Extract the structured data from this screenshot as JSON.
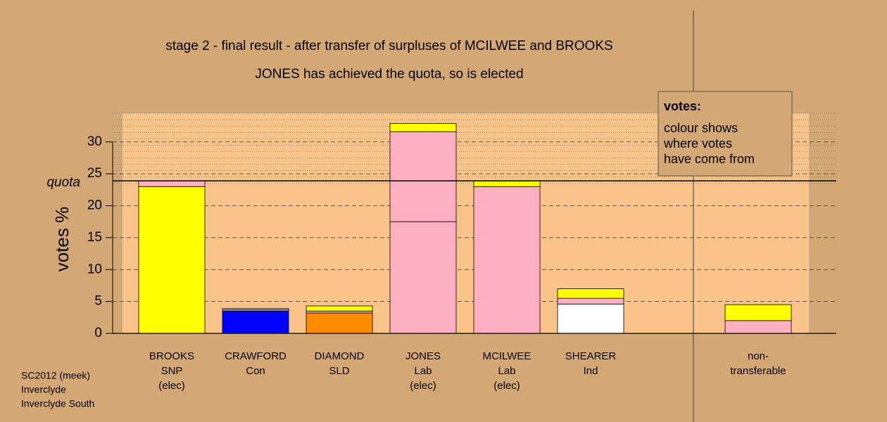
{
  "chart_data": {
    "type": "stacked-bar",
    "title": "stage 2 - final result - after transfer of surpluses of MCILWEE and BROOKS",
    "subtitle": "JONES has achieved the quota, so is elected",
    "ylabel": "votes %",
    "categories": [
      [
        "BROOKS",
        "SNP",
        "(elec)"
      ],
      [
        "CRAWFORD",
        "Con"
      ],
      [
        "DIAMOND",
        "SLD"
      ],
      [
        "JONES",
        "Lab",
        "(elec)"
      ],
      [
        "MCILWEE",
        "Lab",
        "(elec)"
      ],
      [
        "SHEARER",
        "Ind"
      ],
      null,
      [
        "non-",
        "transferable"
      ]
    ],
    "series": [
      {
        "values": [
          23.0,
          3.5,
          3.2,
          17.5,
          23.0,
          4.6,
          null,
          2.0
        ],
        "colors": [
          "#ffff00",
          "#0000ff",
          "#ff8c00",
          "#ffb0c0",
          "#ffb0c0",
          "#ffffff",
          null,
          "#ffb0c0"
        ]
      },
      {
        "values": [
          0.9,
          0.2,
          0.3,
          14.1,
          0.9,
          0.9,
          null,
          2.5
        ],
        "colors": [
          "#ffb0c0",
          "#ffb0c0",
          "#ffb0c0",
          "#ffb0c0",
          "#ffff00",
          "#ffb0c0",
          null,
          "#ffff00"
        ]
      },
      {
        "values": [
          null,
          0.2,
          0.8,
          1.3,
          null,
          1.5,
          null,
          null
        ],
        "colors": [
          null,
          "#ffff00",
          "#ffff00",
          "#ffff00",
          null,
          "#ffff00",
          null,
          null
        ]
      }
    ],
    "ylim": [
      0,
      34.6
    ],
    "yticks": [
      0,
      5,
      10,
      15,
      20,
      25,
      30
    ],
    "grid": true,
    "quota": 23.9,
    "quota_label": "quota",
    "note": {
      "heading": "votes:",
      "lines": [
        "colour shows",
        "where votes",
        "have come from"
      ]
    },
    "footer": [
      "SC2012 (meek)",
      "Inverclyde",
      "Inverclyde South"
    ]
  }
}
